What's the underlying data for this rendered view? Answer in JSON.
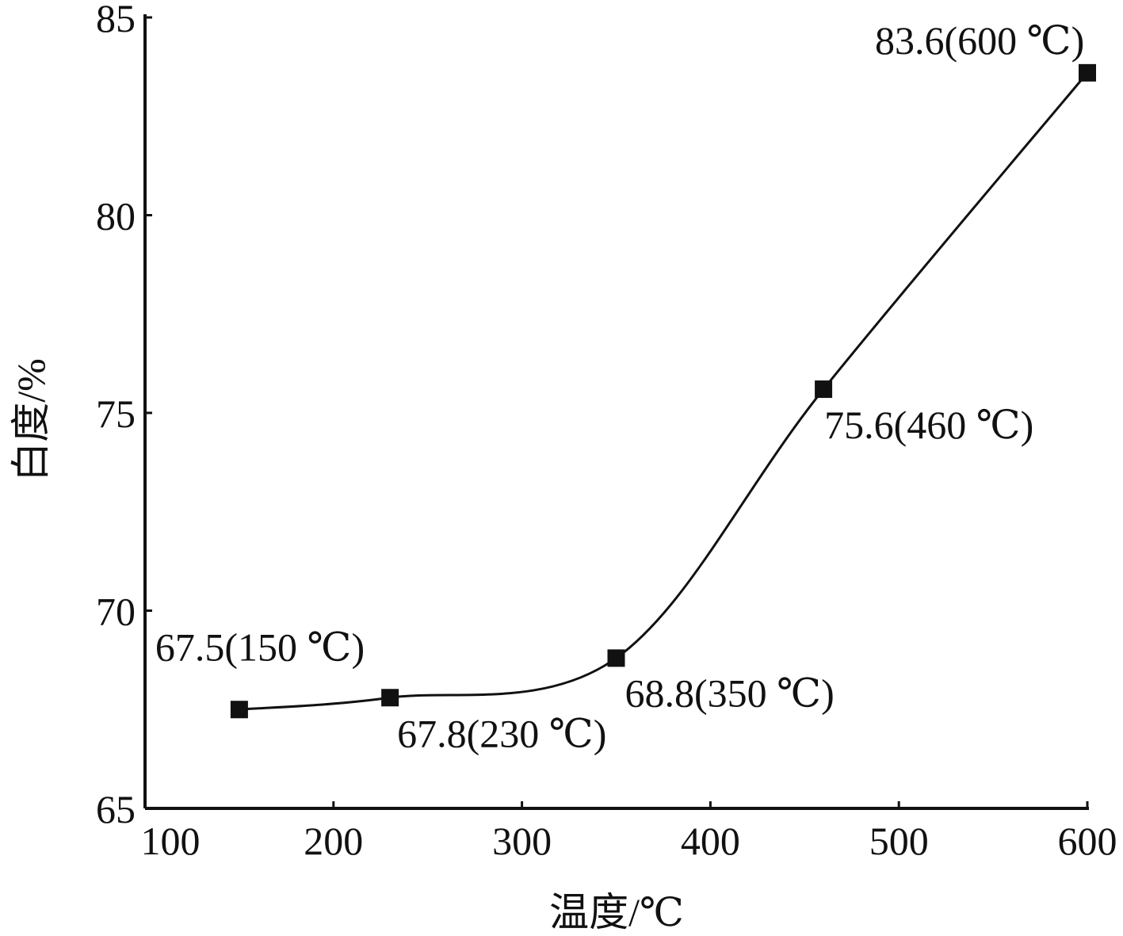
{
  "chart_data": {
    "type": "line",
    "x_label": "温度/℃",
    "y_label": "白度/%",
    "x": [
      150,
      230,
      350,
      460,
      600
    ],
    "values": [
      67.5,
      67.8,
      68.8,
      75.6,
      83.6
    ],
    "value_labels": [
      "67.5(150 ℃)",
      "67.8(230 ℃)",
      "68.8(350 ℃)",
      "75.6(460 ℃)",
      "83.6(600 ℃)"
    ],
    "color": "#111111",
    "xlim": [
      100,
      600
    ],
    "xticks": [
      100,
      200,
      300,
      400,
      500,
      600
    ],
    "ylim": [
      65,
      85
    ],
    "yticks": [
      65,
      70,
      75,
      80,
      85
    ]
  }
}
